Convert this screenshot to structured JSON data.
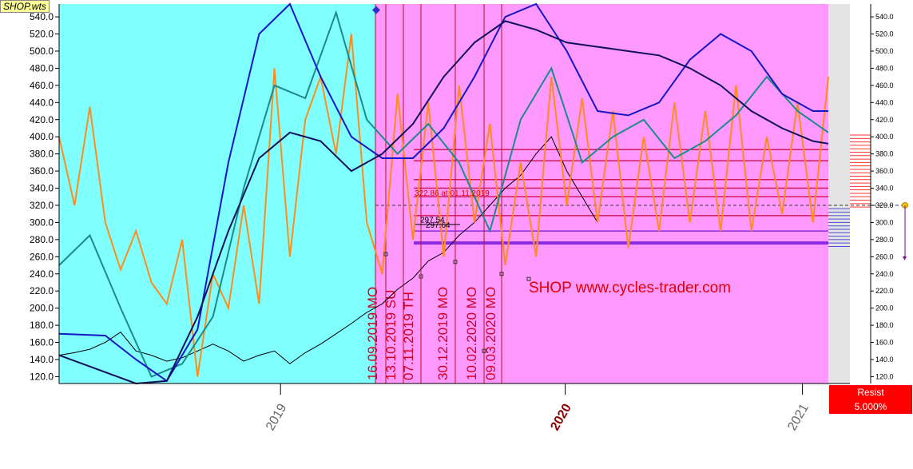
{
  "chart_data": {
    "type": "line",
    "title": "SHOP.wts",
    "watermark": "SHOP www.cycles-trader.com",
    "ylim": [
      112,
      555
    ],
    "left_axis_ticks": [
      120,
      140,
      160,
      180,
      200,
      220,
      240,
      260,
      280,
      300,
      320,
      340,
      360,
      380,
      400,
      420,
      440,
      460,
      480,
      500,
      520,
      540
    ],
    "left_axis_labels": [
      "120.0",
      "140.0",
      "160.0",
      "180.0",
      "200.0",
      "220.0",
      "240.0",
      "260.0",
      "280.0",
      "300.0",
      "320.0",
      "340.0",
      "360.0",
      "380.0",
      "400.0",
      "420.0",
      "440.0",
      "460.0",
      "480.0",
      "500.0",
      "520.0",
      "540.0"
    ],
    "right_axis_labels": [
      "120.0",
      "140.0",
      "160.0",
      "180.0",
      "200.0",
      "220.0",
      "240.0",
      "260.0",
      "280.0",
      "300.0",
      "320.0",
      "340.0",
      "360.0",
      "380.0",
      "400.0",
      "420.0",
      "440.0",
      "460.0",
      "480.0",
      "500.0",
      "520.0",
      "540.0"
    ],
    "x_axis_labels": [
      {
        "label": "2019",
        "pos": 0.28,
        "bold": false
      },
      {
        "label": "2020",
        "pos": 0.64,
        "bold": true
      },
      {
        "label": "2021",
        "pos": 0.94,
        "bold": false
      }
    ],
    "cycle_dates": [
      "16.09.2019 MO",
      "13.10.2019 SU",
      "07.11.2019 TH",
      "30.12.2019 MO",
      "10.02.2020 MO",
      "09.03.2020 MO"
    ],
    "annotations": {
      "high_label": "322.86 at 01.11.2019",
      "level_a": "297.54",
      "level_b": "297.64"
    },
    "last_price": "320.0",
    "horizontal_levels": [
      385,
      372,
      350,
      340,
      330,
      308,
      290,
      276
    ],
    "series": [
      {
        "name": "price",
        "color": "#000000",
        "x": [
          0,
          0.02,
          0.04,
          0.06,
          0.08,
          0.1,
          0.12,
          0.14,
          0.16,
          0.18,
          0.2,
          0.22,
          0.24,
          0.26,
          0.28,
          0.3,
          0.32,
          0.34,
          0.36,
          0.38,
          0.4,
          0.42,
          0.44,
          0.46,
          0.48,
          0.5,
          0.52,
          0.54,
          0.56,
          0.58,
          0.6,
          0.62,
          0.64,
          0.66,
          0.68,
          0.7
        ],
        "values": [
          145,
          148,
          152,
          160,
          172,
          150,
          145,
          138,
          142,
          150,
          158,
          150,
          138,
          145,
          150,
          135,
          148,
          158,
          170,
          182,
          195,
          205,
          222,
          235,
          255,
          265,
          285,
          300,
          320,
          340,
          355,
          380,
          400,
          360,
          330,
          300
        ]
      },
      {
        "name": "orange_cycle",
        "color": "#ff8c1a",
        "x": [
          0,
          0.02,
          0.04,
          0.06,
          0.08,
          0.1,
          0.12,
          0.14,
          0.16,
          0.18,
          0.2,
          0.22,
          0.24,
          0.26,
          0.28,
          0.3,
          0.32,
          0.34,
          0.36,
          0.38,
          0.4,
          0.42,
          0.44,
          0.46,
          0.48,
          0.5,
          0.52,
          0.54,
          0.56,
          0.58,
          0.6,
          0.62,
          0.64,
          0.66,
          0.68,
          0.7,
          0.72,
          0.74,
          0.76,
          0.78,
          0.8,
          0.82,
          0.84,
          0.86,
          0.88,
          0.9,
          0.92,
          0.94,
          0.96,
          0.98,
          1
        ],
        "values": [
          400,
          320,
          435,
          300,
          245,
          290,
          230,
          205,
          280,
          120,
          240,
          200,
          320,
          205,
          480,
          260,
          420,
          470,
          380,
          520,
          300,
          240,
          450,
          280,
          440,
          260,
          460,
          300,
          415,
          250,
          370,
          260,
          470,
          320,
          445,
          300,
          430,
          270,
          400,
          290,
          440,
          300,
          430,
          290,
          460,
          290,
          400,
          310,
          440,
          300,
          470
        ]
      },
      {
        "name": "teal_cycle",
        "color": "#1e8a88",
        "x": [
          0,
          0.04,
          0.08,
          0.12,
          0.16,
          0.2,
          0.24,
          0.28,
          0.32,
          0.36,
          0.4,
          0.44,
          0.48,
          0.52,
          0.56,
          0.6,
          0.64,
          0.68,
          0.72,
          0.76,
          0.8,
          0.84,
          0.88,
          0.92,
          0.96,
          1
        ],
        "values": [
          250,
          285,
          200,
          120,
          135,
          190,
          340,
          460,
          445,
          545,
          420,
          380,
          415,
          370,
          290,
          420,
          480,
          370,
          400,
          420,
          375,
          395,
          425,
          470,
          430,
          405
        ]
      },
      {
        "name": "blue_cycle",
        "color": "#1515c8",
        "x": [
          0,
          0.06,
          0.1,
          0.14,
          0.18,
          0.22,
          0.26,
          0.3,
          0.34,
          0.38,
          0.42,
          0.46,
          0.5,
          0.54,
          0.58,
          0.62,
          0.66,
          0.7,
          0.74,
          0.78,
          0.82,
          0.86,
          0.9,
          0.94,
          0.98,
          1
        ],
        "values": [
          170,
          168,
          140,
          115,
          175,
          370,
          520,
          555,
          470,
          400,
          375,
          375,
          410,
          470,
          540,
          555,
          500,
          430,
          425,
          440,
          490,
          520,
          500,
          450,
          430,
          430
        ]
      },
      {
        "name": "navy_cycle",
        "color": "#10105e",
        "x": [
          0,
          0.1,
          0.14,
          0.18,
          0.22,
          0.26,
          0.3,
          0.34,
          0.38,
          0.42,
          0.46,
          0.5,
          0.54,
          0.58,
          0.62,
          0.66,
          0.7,
          0.74,
          0.78,
          0.82,
          0.86,
          0.9,
          0.94,
          0.98,
          1
        ],
        "values": [
          145,
          112,
          115,
          190,
          290,
          375,
          405,
          395,
          360,
          380,
          415,
          470,
          510,
          535,
          525,
          510,
          505,
          500,
          495,
          480,
          460,
          430,
          410,
          395,
          392
        ]
      }
    ]
  },
  "resist": {
    "label": "Resist",
    "value": "5.000%"
  }
}
